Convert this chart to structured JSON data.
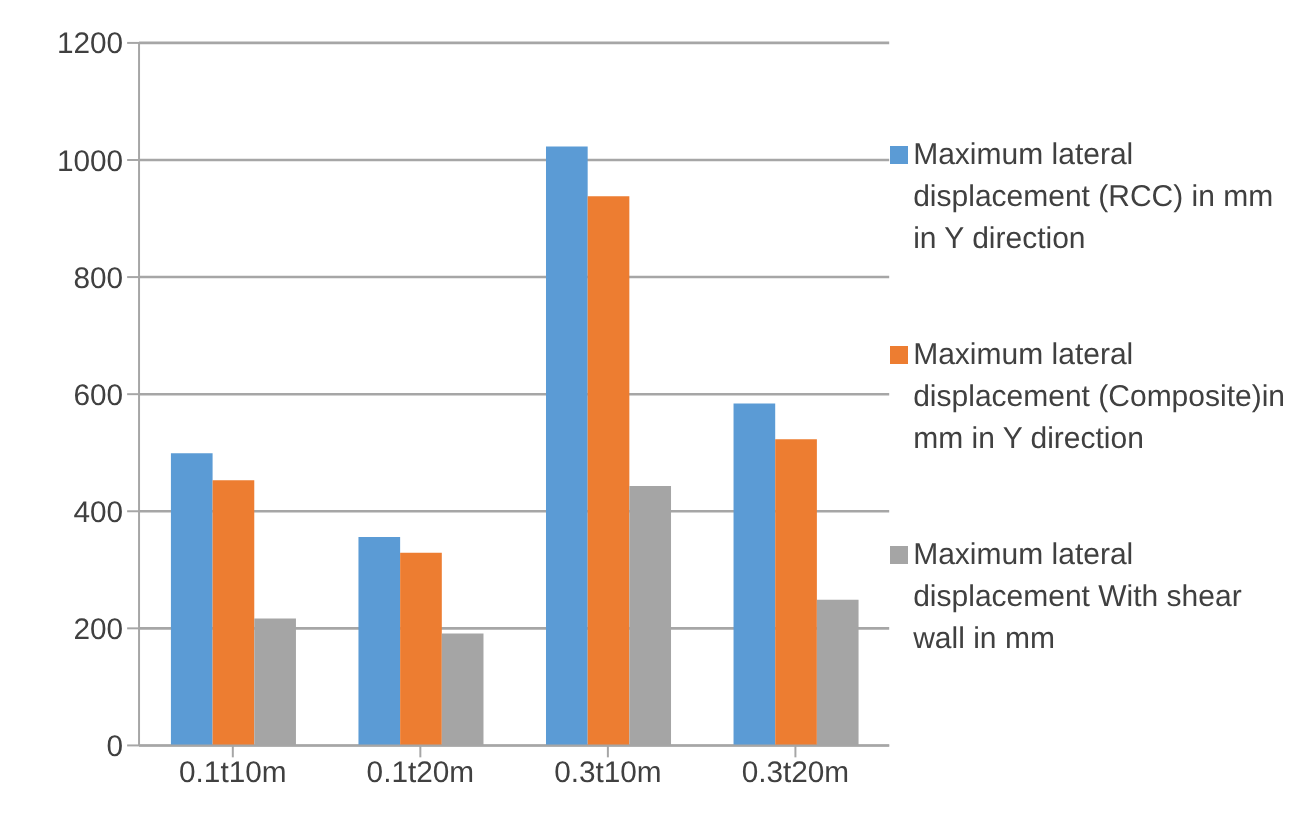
{
  "chart_data": {
    "type": "bar",
    "categories": [
      "0.1t10m",
      "0.1t20m",
      "0.3t10m",
      "0.3t20m"
    ],
    "series": [
      {
        "name": "Maximum lateral displacement (RCC) in mm in Y direction",
        "color": "#5b9bd5",
        "values": [
          499,
          356,
          1023,
          584
        ]
      },
      {
        "name": "Maximum lateral displacement (Composite)in mm in Y direction",
        "color": "#ed7d31",
        "values": [
          453,
          329,
          938,
          523
        ]
      },
      {
        "name": "Maximum lateral displacement With shear wall in mm",
        "color": "#a5a5a5",
        "values": [
          217,
          191,
          443,
          249
        ]
      }
    ],
    "ylim": [
      0,
      1200
    ],
    "yticks": [
      0,
      200,
      400,
      600,
      800,
      1000,
      1200
    ],
    "grid": "y",
    "legend": "right"
  }
}
